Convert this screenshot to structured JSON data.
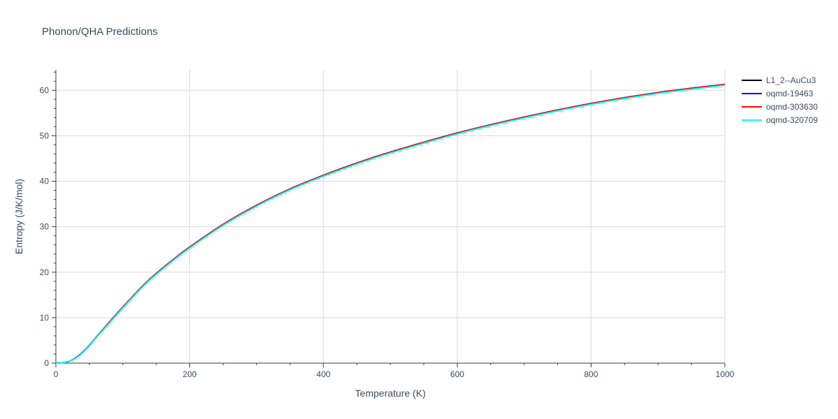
{
  "chart_data": {
    "type": "line",
    "title": "Phonon/QHA Predictions",
    "xlabel": "Temperature (K)",
    "ylabel": "Entropy (J/K/mol)",
    "xlim": [
      0,
      1000
    ],
    "ylim": [
      0,
      64.5
    ],
    "xticks": [
      0,
      200,
      400,
      600,
      800,
      1000
    ],
    "yticks": [
      0,
      10,
      20,
      30,
      40,
      50,
      60
    ],
    "grid": true,
    "legend_position": "top-right",
    "series": [
      {
        "name": "L1_2--AuCu3",
        "color": "#000000",
        "x": [
          0,
          10,
          20,
          30,
          40,
          50,
          60,
          80,
          100,
          130,
          150,
          180,
          200,
          250,
          300,
          350,
          400,
          450,
          500,
          600,
          700,
          800,
          900,
          1000
        ],
        "y": [
          0,
          0.1,
          0.4,
          1.2,
          2.4,
          3.9,
          5.6,
          9.0,
          12.3,
          17.0,
          19.7,
          23.3,
          25.5,
          30.5,
          34.7,
          38.3,
          41.3,
          44.0,
          46.4,
          50.6,
          54.1,
          57.1,
          59.5,
          61.3
        ]
      },
      {
        "name": "oqmd-19463",
        "color": "#0000ff",
        "x": [
          0,
          10,
          20,
          30,
          40,
          50,
          60,
          80,
          100,
          130,
          150,
          180,
          200,
          250,
          300,
          350,
          400,
          450,
          500,
          600,
          700,
          800,
          900,
          1000
        ],
        "y": [
          0,
          0.1,
          0.4,
          1.2,
          2.4,
          3.9,
          5.6,
          9.0,
          12.3,
          17.0,
          19.7,
          23.3,
          25.5,
          30.5,
          34.7,
          38.3,
          41.3,
          44.0,
          46.4,
          50.6,
          54.1,
          57.1,
          59.5,
          61.3
        ]
      },
      {
        "name": "oqmd-303630",
        "color": "#ff0000",
        "x": [
          0,
          10,
          20,
          30,
          40,
          50,
          60,
          80,
          100,
          130,
          150,
          180,
          200,
          250,
          300,
          350,
          400,
          450,
          500,
          600,
          700,
          800,
          900,
          1000
        ],
        "y": [
          0,
          0.1,
          0.4,
          1.2,
          2.4,
          3.9,
          5.6,
          9.0,
          12.3,
          17.0,
          19.7,
          23.3,
          25.5,
          30.5,
          34.7,
          38.3,
          41.3,
          44.0,
          46.4,
          50.6,
          54.1,
          57.1,
          59.5,
          61.3
        ]
      },
      {
        "name": "oqmd-320709",
        "color": "#00ffff",
        "x": [
          0,
          10,
          20,
          30,
          40,
          50,
          60,
          80,
          100,
          130,
          150,
          180,
          200,
          250,
          300,
          350,
          400,
          450,
          500,
          600,
          700,
          800,
          900,
          1000
        ],
        "y": [
          0,
          0.1,
          0.4,
          1.1,
          2.3,
          3.8,
          5.5,
          8.8,
          12.1,
          16.8,
          19.5,
          23.1,
          25.3,
          30.3,
          34.5,
          38.1,
          41.1,
          43.8,
          46.2,
          50.4,
          53.9,
          56.9,
          59.3,
          61.1
        ]
      }
    ]
  }
}
